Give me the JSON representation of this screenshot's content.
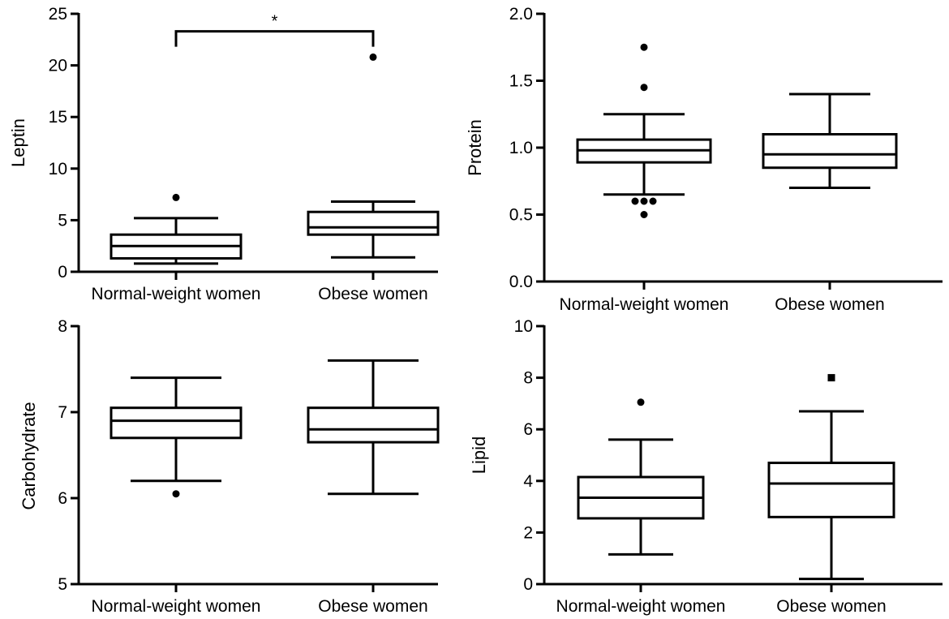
{
  "chart_data": [
    {
      "type": "box",
      "ylabel": "Leptin",
      "ylim": [
        0,
        25
      ],
      "yticks": [
        0,
        5,
        10,
        15,
        20,
        25
      ],
      "ytick_labels": [
        "0",
        "5",
        "10",
        "15",
        "20",
        "25"
      ],
      "categories": [
        "Normal-weight women",
        "Obese women"
      ],
      "boxes": [
        {
          "whisker_low": 0.8,
          "q1": 1.3,
          "median": 2.5,
          "q3": 3.6,
          "whisker_high": 5.2,
          "outliers": [
            7.2
          ],
          "outlier_marker": "circle"
        },
        {
          "whisker_low": 1.4,
          "q1": 3.6,
          "median": 4.3,
          "q3": 5.8,
          "whisker_high": 6.8,
          "outliers": [
            20.8
          ],
          "outlier_marker": "circle"
        }
      ],
      "significance": {
        "label": "*",
        "level": 23.3
      }
    },
    {
      "type": "box",
      "ylabel": "Protein",
      "ylim": [
        0.0,
        2.0
      ],
      "yticks": [
        0.0,
        0.5,
        1.0,
        1.5,
        2.0
      ],
      "ytick_labels": [
        "0.0",
        "0.5",
        "1.0",
        "1.5",
        "2.0"
      ],
      "categories": [
        "Normal-weight women",
        "Obese women"
      ],
      "boxes": [
        {
          "whisker_low": 0.65,
          "q1": 0.89,
          "median": 0.98,
          "q3": 1.06,
          "whisker_high": 1.25,
          "outliers": [
            1.75,
            1.45,
            0.6,
            0.6,
            0.6,
            0.5
          ],
          "outlier_marker": "circle"
        },
        {
          "whisker_low": 0.7,
          "q1": 0.85,
          "median": 0.95,
          "q3": 1.1,
          "whisker_high": 1.4,
          "outliers": [],
          "outlier_marker": "circle"
        }
      ]
    },
    {
      "type": "box",
      "ylabel": "Carbohydrate",
      "ylim": [
        5,
        8
      ],
      "yticks": [
        5,
        6,
        7,
        8
      ],
      "ytick_labels": [
        "5",
        "6",
        "7",
        "8"
      ],
      "categories": [
        "Normal-weight women",
        "Obese women"
      ],
      "boxes": [
        {
          "whisker_low": 6.2,
          "q1": 6.7,
          "median": 6.9,
          "q3": 7.05,
          "whisker_high": 7.4,
          "outliers": [
            6.05
          ],
          "outlier_marker": "circle"
        },
        {
          "whisker_low": 6.05,
          "q1": 6.65,
          "median": 6.8,
          "q3": 7.05,
          "whisker_high": 7.6,
          "outliers": [],
          "outlier_marker": "circle"
        }
      ]
    },
    {
      "type": "box",
      "ylabel": "Lipid",
      "ylim": [
        0,
        10
      ],
      "yticks": [
        0,
        2,
        4,
        6,
        8,
        10
      ],
      "ytick_labels": [
        "0",
        "2",
        "4",
        "6",
        "8",
        "10"
      ],
      "categories": [
        "Normal-weight women",
        "Obese women"
      ],
      "boxes": [
        {
          "whisker_low": 1.15,
          "q1": 2.55,
          "median": 3.35,
          "q3": 4.15,
          "whisker_high": 5.6,
          "outliers": [
            7.05
          ],
          "outlier_marker": "circle"
        },
        {
          "whisker_low": 0.2,
          "q1": 2.6,
          "median": 3.9,
          "q3": 4.7,
          "whisker_high": 6.7,
          "outliers": [
            8.0
          ],
          "outlier_marker": "square"
        }
      ]
    }
  ]
}
